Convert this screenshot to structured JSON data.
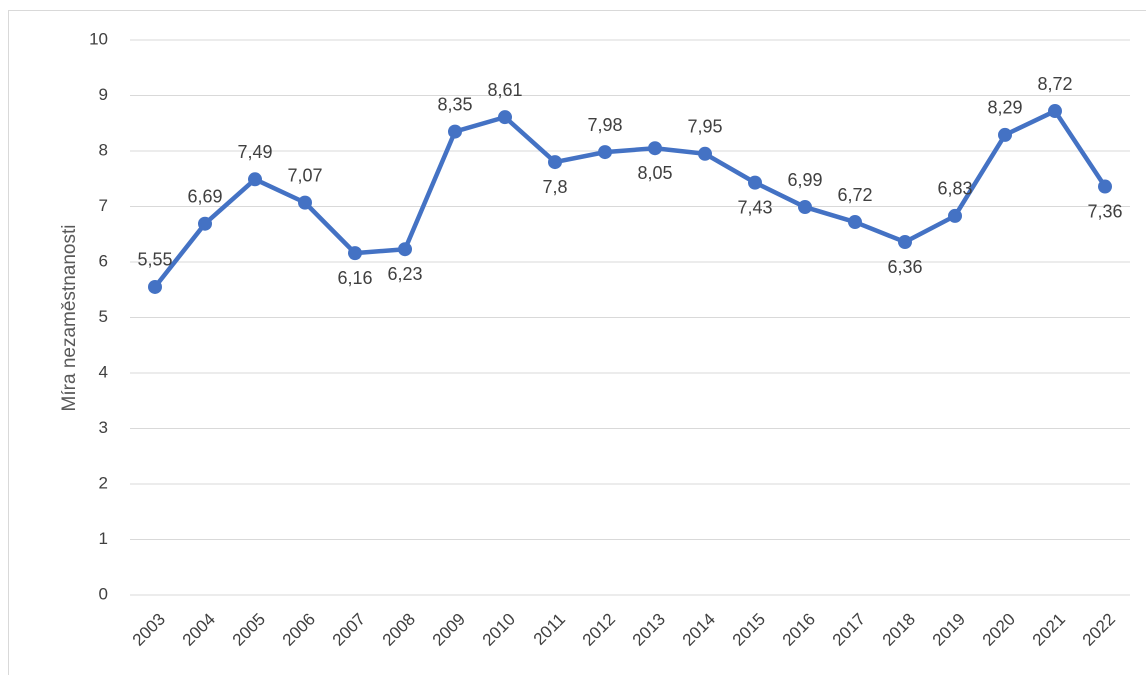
{
  "chart_data": {
    "type": "line",
    "y_label": "Míra nezaměstnanosti",
    "categories": [
      "2003",
      "2004",
      "2005",
      "2006",
      "2007",
      "2008",
      "2009",
      "2010",
      "2011",
      "2012",
      "2013",
      "2014",
      "2015",
      "2016",
      "2017",
      "2018",
      "2019",
      "2020",
      "2021",
      "2022"
    ],
    "series": [
      {
        "name": null,
        "color": "#4472c4",
        "values": [
          5.55,
          6.69,
          7.49,
          7.07,
          6.16,
          6.23,
          8.35,
          8.61,
          7.8,
          7.98,
          8.05,
          7.95,
          7.43,
          6.99,
          6.72,
          6.36,
          6.83,
          8.29,
          8.72,
          7.36
        ],
        "value_labels": [
          "5,55",
          "6,69",
          "7,49",
          "7,07",
          "6,16",
          "6,23",
          "8,35",
          "8,61",
          "7,8",
          "7,98",
          "8,05",
          "7,95",
          "7,43",
          "6,99",
          "6,72",
          "6,36",
          "6,83",
          "8,29",
          "8,72",
          "7,36"
        ]
      }
    ],
    "ylim": [
      0,
      10
    ],
    "yticks": [
      0,
      1,
      2,
      3,
      4,
      5,
      6,
      7,
      8,
      9,
      10
    ],
    "grid": true
  }
}
